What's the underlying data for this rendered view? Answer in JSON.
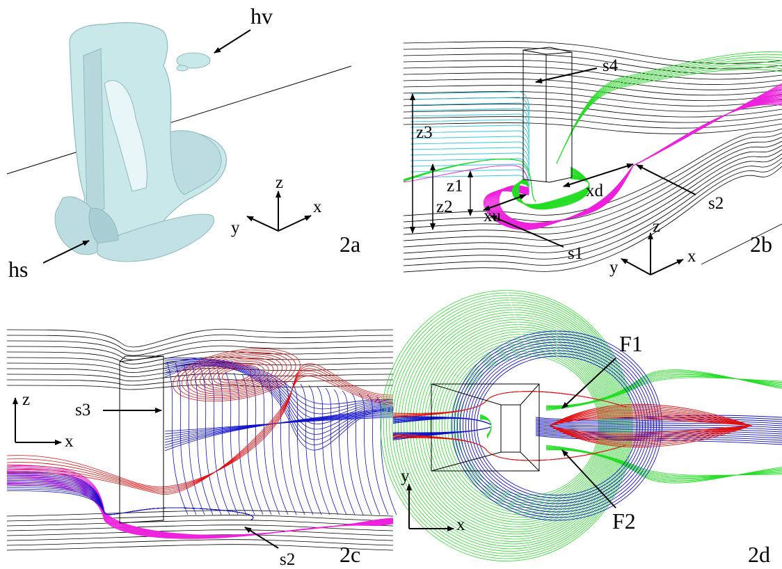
{
  "panels": {
    "a": {
      "id": "2a",
      "labels": {
        "hv": "hv",
        "hs": "hs"
      },
      "axes": {
        "x": "x",
        "y": "y",
        "z": "z"
      }
    },
    "b": {
      "id": "2b",
      "labels": {
        "s1": "s1",
        "s2": "s2",
        "s4": "s4",
        "xu": "xu",
        "xd": "xd",
        "z1": "z1",
        "z2": "z2",
        "z3": "z3"
      },
      "axes": {
        "x": "x",
        "y": "y",
        "z": "z"
      }
    },
    "c": {
      "id": "2c",
      "labels": {
        "s3": "s3",
        "s2": "s2"
      },
      "axes": {
        "x": "x",
        "z": "z"
      }
    },
    "d": {
      "id": "2d",
      "labels": {
        "F1": "F1",
        "F2": "F2"
      },
      "axes": {
        "x": "x",
        "y": "y"
      }
    }
  },
  "colors": {
    "structure": "#c9e8ea",
    "structure_dark": "#8fb9bd",
    "streamline_black": "#000000",
    "cyan": "#33c7e0",
    "green": "#22dd22",
    "magenta": "#ee22dd",
    "red": "#e01010",
    "blue": "#1010cc"
  }
}
